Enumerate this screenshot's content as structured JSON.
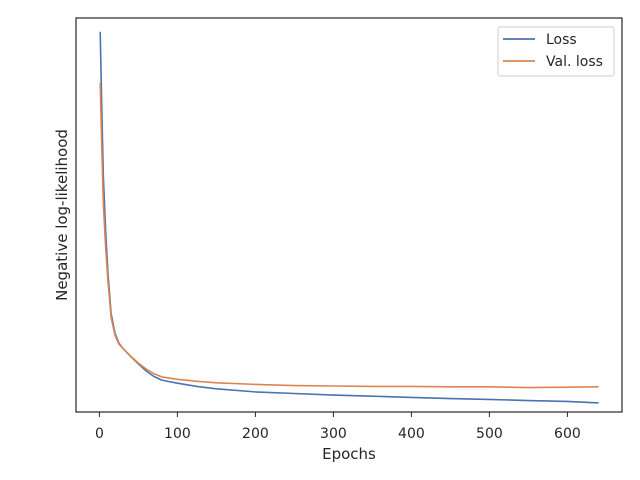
{
  "chart_data": {
    "type": "line",
    "xlabel": "Epochs",
    "ylabel": "Negative log-likelihood",
    "xlim": [
      -30,
      670
    ],
    "ylim": [
      0,
      1
    ],
    "xticks": [
      0,
      100,
      200,
      300,
      400,
      500,
      600
    ],
    "y_tick_labels_shown": false,
    "grid": false,
    "legend_position": "top-right",
    "series": [
      {
        "name": "Loss",
        "color": "#4c72b0",
        "x": [
          1,
          3,
          5,
          8,
          11,
          15,
          20,
          25,
          30,
          40,
          50,
          60,
          70,
          80,
          100,
          125,
          150,
          200,
          250,
          300,
          350,
          400,
          450,
          500,
          550,
          600,
          640
        ],
        "y": [
          0.965,
          0.78,
          0.6,
          0.46,
          0.35,
          0.25,
          0.2,
          0.175,
          0.162,
          0.141,
          0.122,
          0.104,
          0.09,
          0.081,
          0.073,
          0.065,
          0.059,
          0.051,
          0.047,
          0.043,
          0.04,
          0.037,
          0.034,
          0.032,
          0.029,
          0.027,
          0.023
        ]
      },
      {
        "name": "Val. loss",
        "color": "#dd8452",
        "x": [
          1,
          3,
          5,
          8,
          11,
          15,
          20,
          25,
          30,
          40,
          50,
          60,
          70,
          80,
          100,
          125,
          150,
          200,
          250,
          300,
          350,
          400,
          450,
          500,
          550,
          600,
          640
        ],
        "y": [
          0.835,
          0.68,
          0.53,
          0.42,
          0.33,
          0.24,
          0.195,
          0.172,
          0.162,
          0.142,
          0.124,
          0.109,
          0.097,
          0.089,
          0.083,
          0.078,
          0.074,
          0.07,
          0.067,
          0.066,
          0.065,
          0.065,
          0.064,
          0.064,
          0.062,
          0.063,
          0.064
        ]
      }
    ]
  }
}
